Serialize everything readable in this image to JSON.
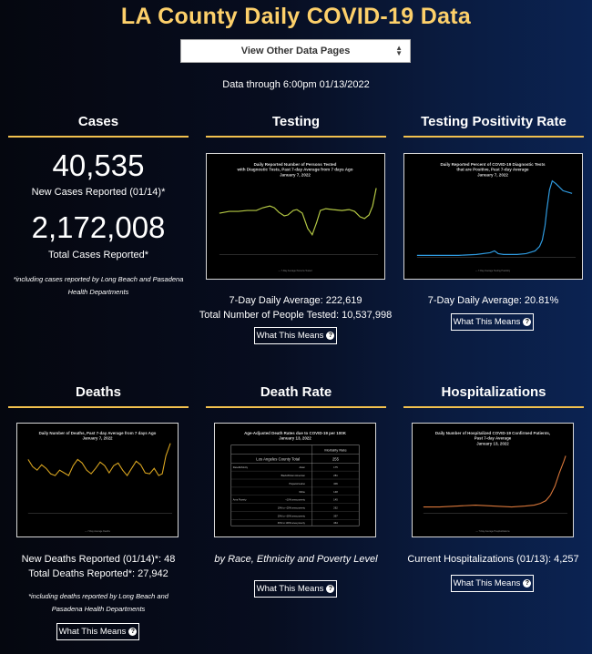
{
  "header": {
    "title": "LA County Daily COVID-19 Data",
    "select_value": "View Other Data Pages",
    "data_through": "Data through 6:00pm 01/13/2022"
  },
  "cases": {
    "title": "Cases",
    "new_count": "40,535",
    "new_label": "New Cases Reported (01/14)*",
    "total_count": "2,172,008",
    "total_label": "Total Cases Reported*",
    "note_line1": "*including cases reported by Long Beach and Pasadena",
    "note_line2": "Health Departments"
  },
  "testing": {
    "title": "Testing",
    "chart_title_1": "Daily Reported Number of Persons Tested",
    "chart_title_2": "with Diagnostic Tests, Past 7-day Average from 7 days Ago",
    "chart_title_3": "January 7, 2022",
    "avg": "7-Day Daily Average: 222,619",
    "total": "Total Number of People Tested: 10,537,998",
    "button": "What This Means"
  },
  "positivity": {
    "title": "Testing Positivity Rate",
    "chart_title_1": "Daily Reported Percent of COVID-19 Diagnostic Tests",
    "chart_title_2": "that are Positive, Past 7-day Average",
    "chart_title_3": "January 7, 2022",
    "avg": "7-Day Daily Average: 20.81%",
    "button": "What This Means"
  },
  "deaths": {
    "title": "Deaths",
    "chart_title_1": "Daily Number of Deaths, Past 7-day Average from 7 days Ago",
    "chart_title_2": "January 7, 2022",
    "new": "New Deaths Reported (01/14)*: 48",
    "total": "Total Deaths Reported*: 27,942",
    "note_line1": "*including deaths reported by Long Beach and",
    "note_line2": "Pasadena Health Departments",
    "button": "What This Means"
  },
  "death_rate": {
    "title": "Death Rate",
    "chart_title_1": "Age-Adjusted Death Rates due to COVID-19 per 100K",
    "chart_title_2": "January 13, 2022",
    "col_header": "Mortality Rate",
    "rows": [
      {
        "group": "",
        "label": "Los Angeles County Total",
        "value": "255"
      },
      {
        "group": "Race/Ethnicity",
        "label": "Asian",
        "value": "175"
      },
      {
        "group": "",
        "label": "Black/African American",
        "value": "281"
      },
      {
        "group": "",
        "label": "Hispanic/Latino",
        "value": "406"
      },
      {
        "group": "",
        "label": "White",
        "value": "148"
      },
      {
        "group": "Area Poverty",
        "label": "<10% area poverty",
        "value": "145"
      },
      {
        "group": "",
        "label": "10% to <20% area poverty",
        "value": "262"
      },
      {
        "group": "",
        "label": "20% to <30% area poverty",
        "value": "397"
      },
      {
        "group": "",
        "label": "30% to 100% area poverty",
        "value": "464"
      }
    ],
    "caption": "by Race, Ethnicity and Poverty Level",
    "button": "What This Means"
  },
  "hospitalizations": {
    "title": "Hospitalizations",
    "chart_title_1": "Daily Number of Hospitalized COVID-19 Confirmed Patients,",
    "chart_title_2": "Past 7-day Average",
    "chart_title_3": "January 13, 2022",
    "current": "Current Hospitalizations (01/13): 4,257",
    "button": "What This Means"
  },
  "icons": {
    "button_icon": "question-circle-icon",
    "select_icon": "updown-arrows-icon"
  },
  "colors": {
    "title": "#fdd06a",
    "rule": "#f2c14e",
    "testing_line": "#b5c944",
    "positivity_line": "#2f9be0",
    "deaths_line": "#d9a520",
    "hosp_line": "#d9773a"
  }
}
